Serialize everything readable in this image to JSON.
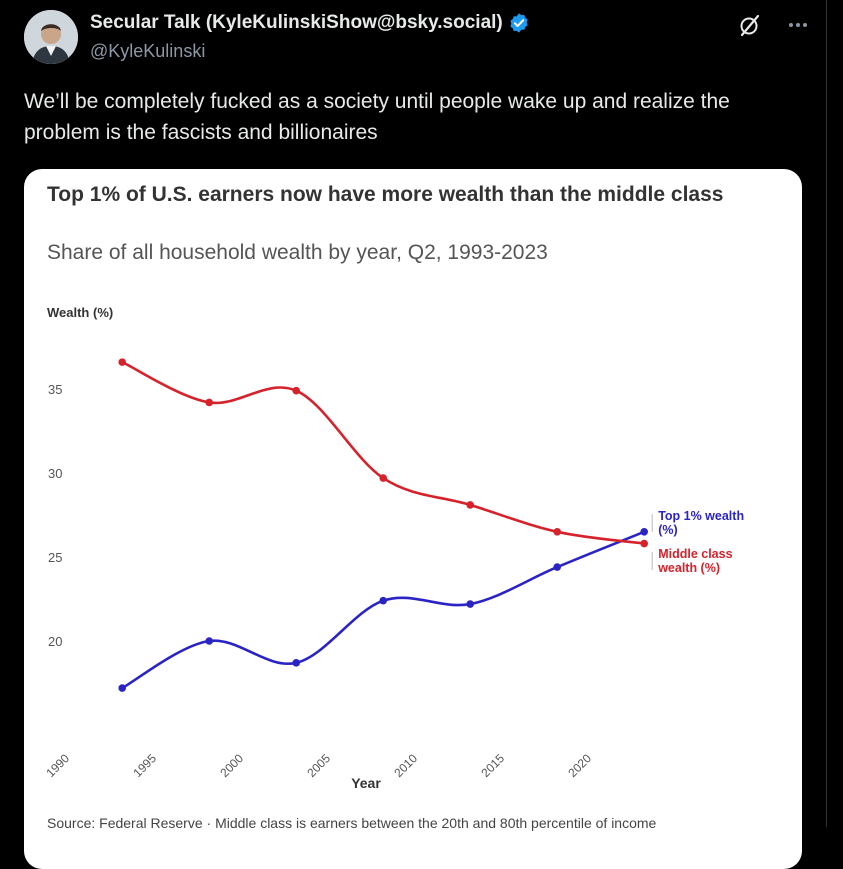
{
  "author": {
    "name": "Secular Talk (KyleKulinskiShow@bsky.social)",
    "handle": "@KyleKulinski"
  },
  "post": {
    "text": "We’ll be completely fucked as a society until people wake up and realize the problem is the fascists and billionaires"
  },
  "icons": {
    "verified": "verified-badge-icon",
    "grok": "grok-icon",
    "more": "more-options-icon"
  },
  "colors": {
    "top1": "#2b24c4",
    "middle": "#d6222b",
    "verified": "#1d9bf0"
  },
  "chart": {
    "title": "Top 1% of U.S. earners now have more wealth than the middle class",
    "subtitle": "Share of all household wealth by year, Q2, 1993-2023",
    "source": "Source: Federal Reserve · Middle class is earners between the 20th and 80th percentile of income"
  },
  "chart_data": {
    "type": "line",
    "title": "Top 1% of U.S. earners now have more wealth than the middle class",
    "subtitle": "Share of all household wealth by year, Q2, 1993-2023",
    "xlabel": "Year",
    "ylabel": "Wealth (%)",
    "xlim": [
      1990,
      2023
    ],
    "ylim": [
      16,
      37
    ],
    "x_ticks": [
      1990,
      1995,
      2000,
      2005,
      2010,
      2015,
      2020
    ],
    "y_ticks": [
      20,
      25,
      30,
      35
    ],
    "grid": false,
    "legend": "end-of-line labels",
    "x": [
      1993,
      1998,
      2003,
      2008,
      2013,
      2018,
      2023
    ],
    "series": [
      {
        "name": "Top 1% wealth (%)",
        "label_lines": [
          "Top 1% wealth",
          "(%)"
        ],
        "color": "#2b24c4",
        "values": [
          17.2,
          20.0,
          18.7,
          22.4,
          22.2,
          24.4,
          26.5
        ]
      },
      {
        "name": "Middle class wealth (%)",
        "label_lines": [
          "Middle class",
          "wealth (%)"
        ],
        "color": "#d6222b",
        "values": [
          36.6,
          34.2,
          34.9,
          29.7,
          28.1,
          26.5,
          25.8
        ]
      }
    ]
  }
}
